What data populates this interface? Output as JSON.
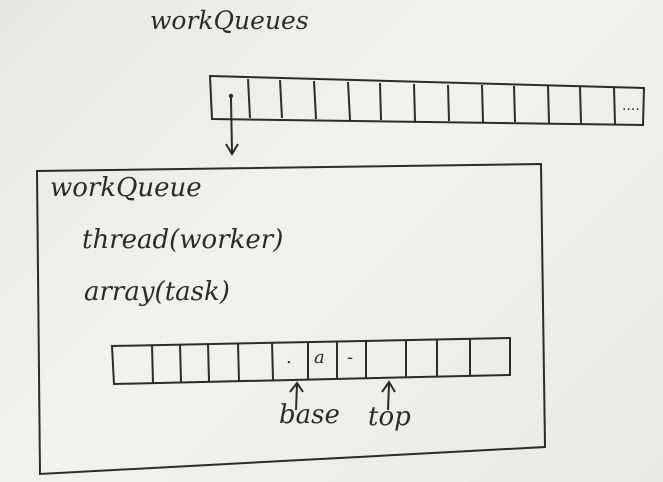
{
  "header": {
    "title": "workQueues"
  },
  "queues_array": {
    "ellipsis": "...."
  },
  "detail_box": {
    "title": "workQueue",
    "lines": [
      "thread(worker)",
      "array(task)"
    ]
  },
  "task_array": {
    "marks": [
      ".",
      "a",
      "-"
    ],
    "pointers": {
      "base": "base",
      "top": "top"
    }
  },
  "colors": {
    "ink": "#2b2b2b",
    "board": "#ececea",
    "accent_red": "#c0504d"
  }
}
